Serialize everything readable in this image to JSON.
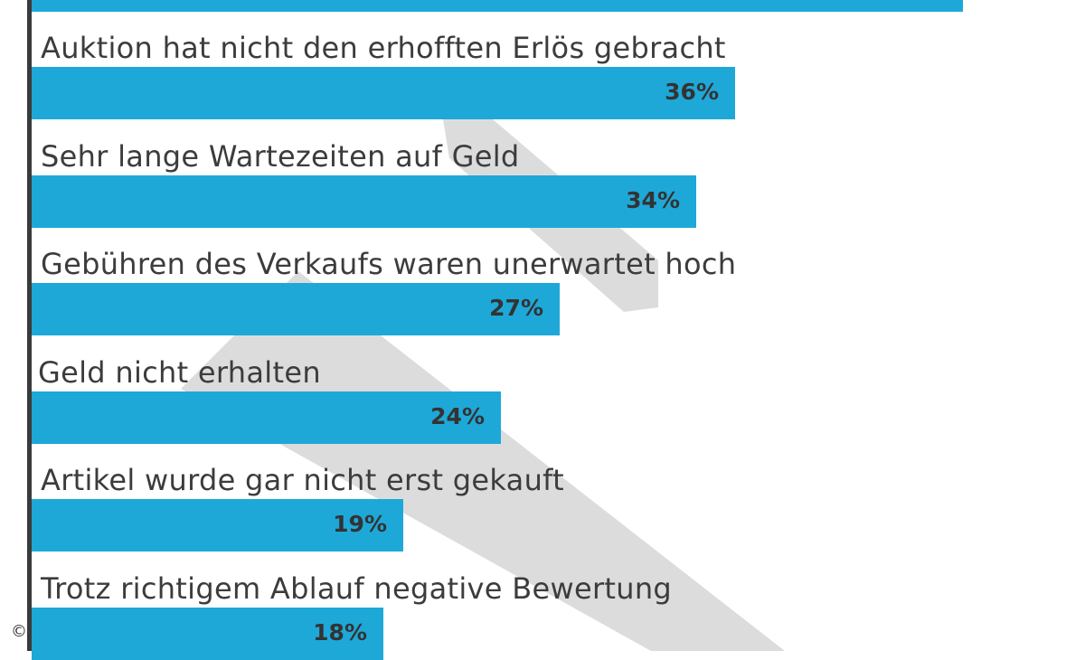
{
  "chart_data": {
    "type": "bar",
    "orientation": "horizontal",
    "categories": [
      "",
      "Auktion hat nicht den erhofften Erlös gebracht",
      "Sehr lange Wartezeiten auf Geld",
      "Gebühren des Verkaufs waren unerwartet hoch",
      "Geld nicht erhalten",
      "Artikel wurde gar nicht erst gekauft",
      "Trotz richtigem Ablauf negative Bewertung"
    ],
    "values": [
      null,
      36,
      34,
      27,
      24,
      19,
      18
    ],
    "value_labels": [
      "",
      "36%",
      "34%",
      "27%",
      "24%",
      "19%",
      "18%"
    ],
    "unit": "%",
    "bar_color": "#1ea8d8",
    "grid": false
  },
  "copyright_symbol": "©"
}
